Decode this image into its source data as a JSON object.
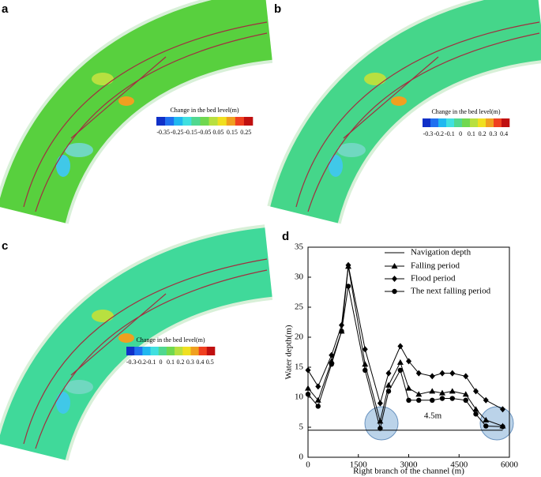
{
  "maps": [
    {
      "label": "a",
      "fill": "#58d03e",
      "colorbar": {
        "title": "Change in the bed level(m)",
        "lim": [
          -0.4,
          0.3
        ],
        "ticks": [
          -0.35,
          -0.25,
          -0.15,
          -0.05,
          0.05,
          0.15,
          0.25
        ]
      }
    },
    {
      "label": "b",
      "fill": "#45d68a",
      "colorbar": {
        "title": "Change in the bed level(m)",
        "lim": [
          -0.35,
          0.45
        ],
        "ticks": [
          -0.3,
          -0.2,
          -0.1,
          0,
          0.1,
          0.2,
          0.3,
          0.4
        ]
      }
    },
    {
      "label": "c",
      "fill": "#40d99a",
      "colorbar": {
        "title": "Change in the bed level(m)",
        "lim": [
          -0.35,
          0.55
        ],
        "ticks": [
          -0.3,
          -0.2,
          -0.1,
          0,
          0.1,
          0.2,
          0.3,
          0.4,
          0.5
        ]
      }
    }
  ],
  "chart_data": {
    "type": "line",
    "label": "d",
    "xlabel": "Right branch of the channel (m)",
    "ylabel": "Water depth(m)",
    "x": [
      0,
      300,
      700,
      1000,
      1200,
      1700,
      2150,
      2400,
      2750,
      3000,
      3300,
      3700,
      4000,
      4300,
      4700,
      5000,
      5300,
      5800
    ],
    "series": [
      {
        "name": "Navigation depth",
        "color": "#000000",
        "marker": "none",
        "values": [
          4.5,
          4.5,
          4.5,
          4.5,
          4.5,
          4.5,
          4.5,
          4.5,
          4.5,
          4.5,
          4.5,
          4.5,
          4.5,
          4.5,
          4.5,
          4.5,
          4.5,
          4.5
        ]
      },
      {
        "name": "Falling period",
        "color": "#000000",
        "marker": "triangle",
        "values": [
          11.5,
          9.5,
          16,
          21,
          31.8,
          15.5,
          6,
          12,
          15.8,
          11.5,
          10.5,
          11,
          10.7,
          11,
          10.5,
          8,
          6.2,
          5.2
        ]
      },
      {
        "name": "Flood period",
        "color": "#000000",
        "marker": "diamond",
        "values": [
          14.5,
          11.8,
          17,
          22,
          32,
          18,
          9,
          14,
          18.5,
          16,
          14,
          13.5,
          14,
          14,
          13.5,
          11,
          9.5,
          8
        ]
      },
      {
        "name": "The next falling period",
        "color": "#000000",
        "marker": "circle",
        "values": [
          10.5,
          8.5,
          15.5,
          21,
          28.5,
          14.5,
          4.8,
          11,
          14.5,
          9.5,
          9.5,
          9.5,
          9.8,
          9.8,
          9.5,
          7.2,
          5.2,
          5.1
        ]
      }
    ],
    "annotation": "4.5m",
    "xlim": [
      0,
      6000
    ],
    "xticks": [
      0,
      1500,
      3000,
      4500,
      6000
    ],
    "ylim": [
      0,
      35
    ],
    "yticks": [
      0,
      5,
      10,
      15,
      20,
      25,
      30,
      35
    ]
  }
}
